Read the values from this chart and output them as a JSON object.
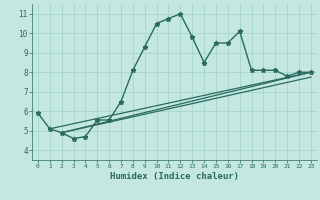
{
  "xlabel": "Humidex (Indice chaleur)",
  "ylabel": "",
  "bg_color": "#c4e8e0",
  "grid_color": "#a8d8d0",
  "line_color": "#2a6a60",
  "xlim": [
    -0.5,
    23.5
  ],
  "ylim": [
    3.5,
    11.5
  ],
  "xticks": [
    0,
    1,
    2,
    3,
    4,
    5,
    6,
    7,
    8,
    9,
    10,
    11,
    12,
    13,
    14,
    15,
    16,
    17,
    18,
    19,
    20,
    21,
    22,
    23
  ],
  "yticks": [
    4,
    5,
    6,
    7,
    8,
    9,
    10,
    11
  ],
  "main_line_x": [
    0,
    1,
    2,
    3,
    4,
    5,
    6,
    7,
    8,
    9,
    10,
    11,
    12,
    13,
    14,
    15,
    16,
    17,
    18,
    19,
    20,
    21,
    22,
    23
  ],
  "main_line_y": [
    5.9,
    5.1,
    4.9,
    4.6,
    4.7,
    5.55,
    5.55,
    6.5,
    8.1,
    9.3,
    10.5,
    10.75,
    11.0,
    9.8,
    8.5,
    9.5,
    9.5,
    10.1,
    8.1,
    8.1,
    8.1,
    7.8,
    8.0,
    8.0
  ],
  "line2_x": [
    1,
    23
  ],
  "line2_y": [
    5.1,
    8.0
  ],
  "line3_x": [
    2,
    23
  ],
  "line3_y": [
    4.9,
    8.0
  ],
  "line4_x": [
    2,
    23
  ],
  "line4_y": [
    4.9,
    7.75
  ]
}
